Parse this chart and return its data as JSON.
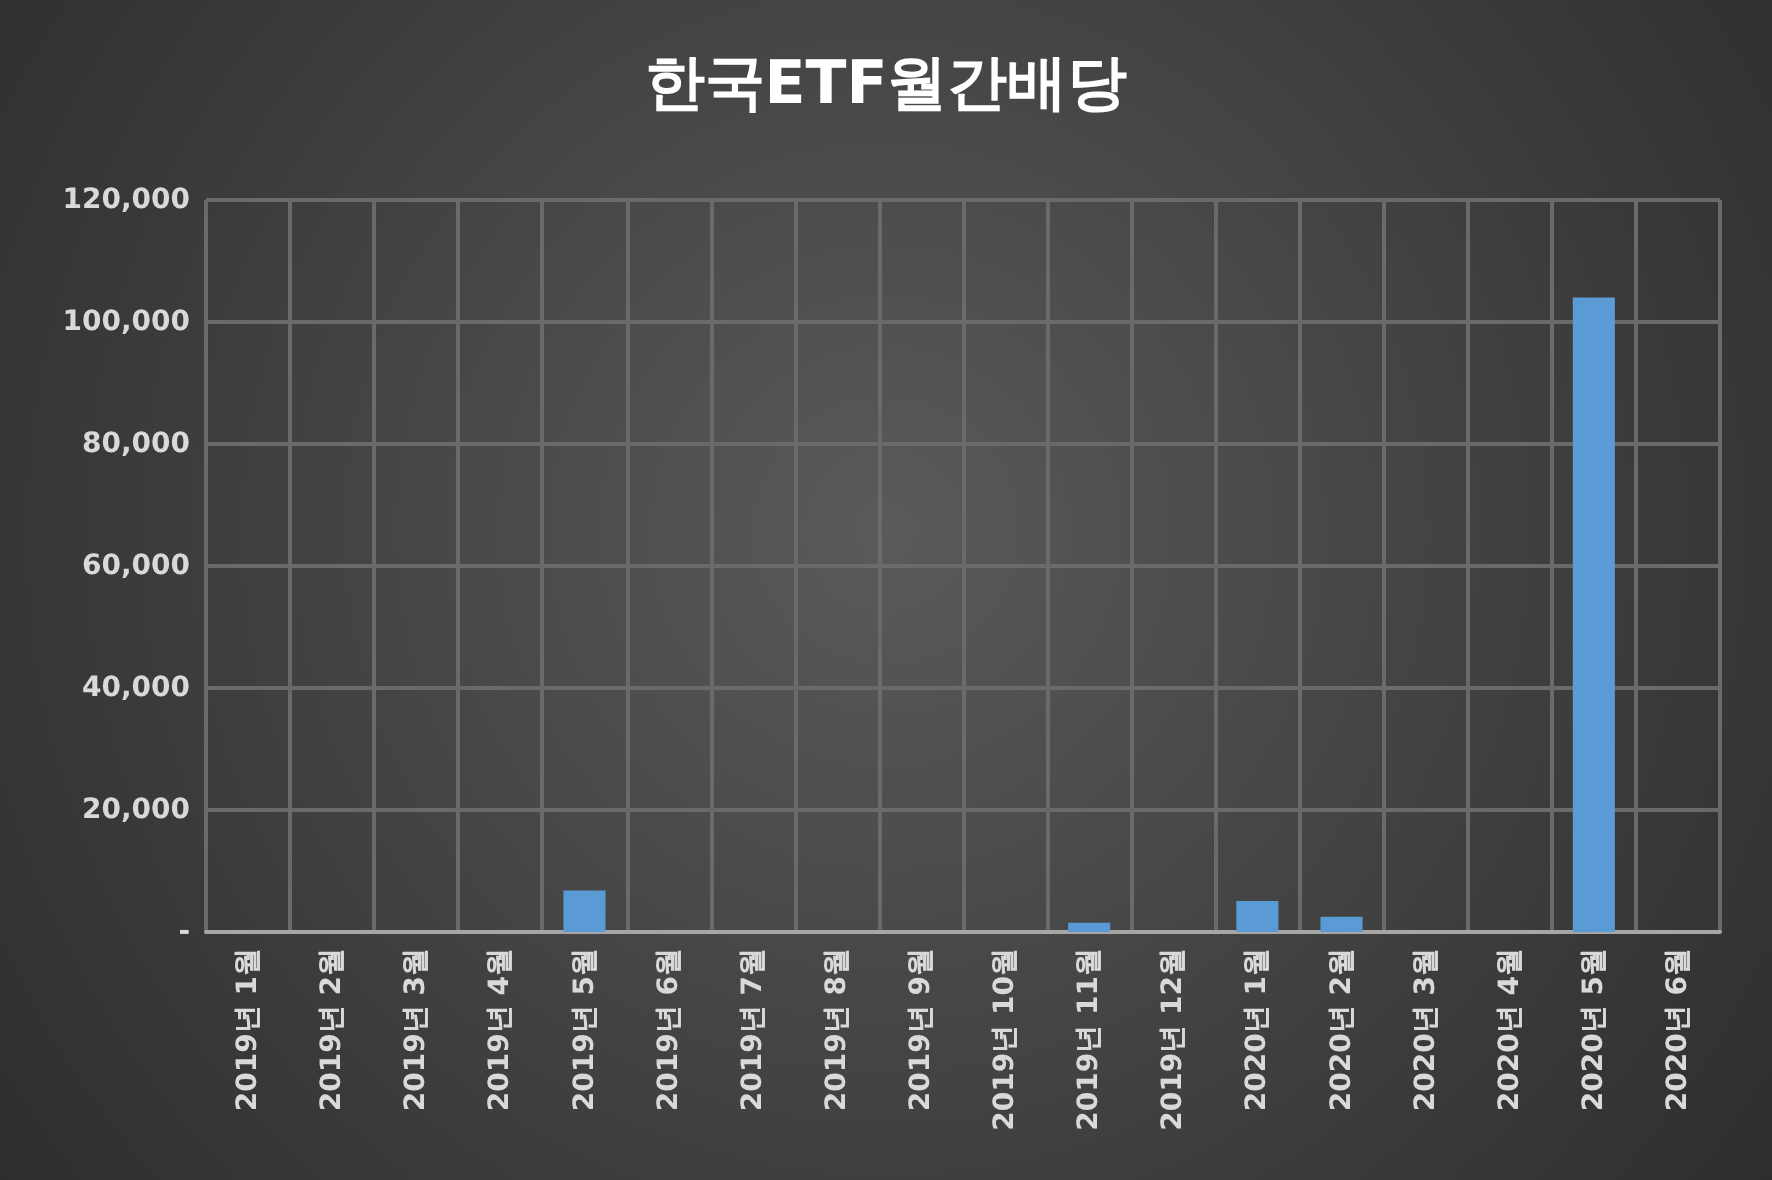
{
  "chart_data": {
    "type": "bar",
    "title": "한국ETF월간배당",
    "categories": [
      "2019년 1월",
      "2019년 2월",
      "2019년 3월",
      "2019년 4월",
      "2019년 5월",
      "2019년 6월",
      "2019년 7월",
      "2019년 8월",
      "2019년 9월",
      "2019년 10월",
      "2019년 11월",
      "2019년 12월",
      "2020년 1월",
      "2020년 2월",
      "2020년 3월",
      "2020년 4월",
      "2020년 5월",
      "2020년 6월"
    ],
    "values": [
      0,
      0,
      0,
      0,
      6800,
      0,
      0,
      0,
      0,
      0,
      1500,
      0,
      5100,
      2500,
      0,
      0,
      104000,
      0
    ],
    "color": "#5b9bd5",
    "ylim": [
      0,
      120000
    ],
    "yticks": [
      {
        "value": 0,
        "label": "-"
      },
      {
        "value": 20000,
        "label": "20,000"
      },
      {
        "value": 40000,
        "label": "40,000"
      },
      {
        "value": 60000,
        "label": "60,000"
      },
      {
        "value": 80000,
        "label": "80,000"
      },
      {
        "value": 100000,
        "label": "100,000"
      },
      {
        "value": 120000,
        "label": "120,000"
      }
    ],
    "grid": true
  }
}
